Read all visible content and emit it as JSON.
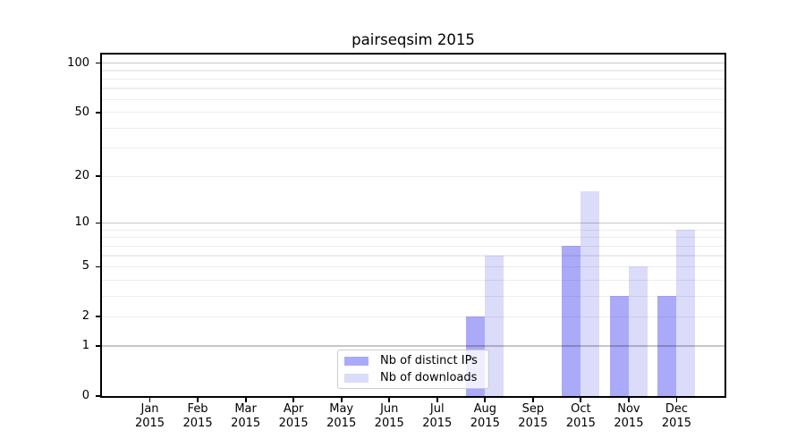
{
  "chart_data": {
    "type": "bar",
    "title": "pairseqsim 2015",
    "categories": [
      "Jan",
      "Feb",
      "Mar",
      "Apr",
      "May",
      "Jun",
      "Jul",
      "Aug",
      "Sep",
      "Oct",
      "Nov",
      "Dec"
    ],
    "category_year": "2015",
    "series": [
      {
        "key": "distinct-ips",
        "name": "Nb of distinct IPs",
        "color": "#aaaaf8",
        "values": [
          0,
          0,
          0,
          0,
          0,
          0,
          0,
          2,
          0,
          7,
          3,
          3
        ]
      },
      {
        "key": "downloads",
        "name": "Nb of downloads",
        "color": "#dbdbfa",
        "values": [
          0,
          0,
          0,
          0,
          0,
          0,
          0,
          6,
          0,
          16,
          5,
          9
        ]
      }
    ],
    "yscale": "log1p",
    "ylim": [
      0,
      113
    ],
    "y_ticks": [
      0,
      1,
      2,
      5,
      10,
      20,
      50,
      100
    ],
    "y_major_gridline_values": [
      1,
      10,
      100
    ],
    "y_minor_gridline_values": [
      3,
      4,
      6,
      7,
      8,
      9,
      30,
      40,
      60,
      70,
      80,
      90
    ],
    "grid": "both",
    "legend_position": "lower center"
  },
  "colors": {
    "major_grid": "#c7c7c7",
    "minor_grid": "#ededed",
    "axis": "#000000",
    "text": "#000000",
    "legend_border": "#cccccc",
    "legend_background": "#ffffff"
  }
}
